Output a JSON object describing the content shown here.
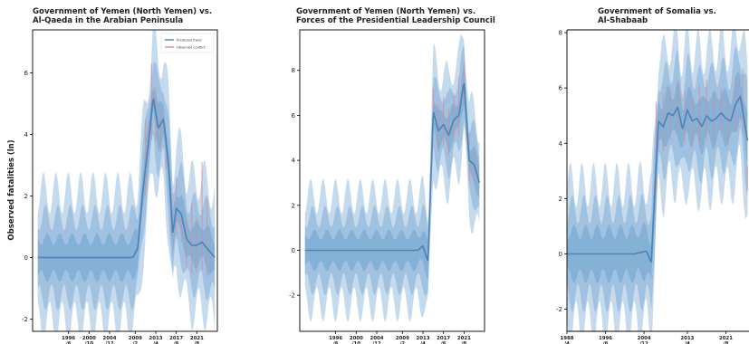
{
  "ylabel": "Observed fatalities (ln)",
  "colors": {
    "band": "#1f6fb4",
    "trend": "#4a83b8",
    "observed": "#d98a9c",
    "axis": "#000000"
  },
  "chart_data": [
    {
      "type": "area",
      "title": [
        "Government of Yemen (North Yemen) vs.",
        "Al-Qaeda in the Arabian Peninsula"
      ],
      "xlim": [
        1989,
        2025
      ],
      "ylim": [
        -2.4,
        7.4
      ],
      "yticks": [
        -2,
        0,
        2,
        4,
        6
      ],
      "xticks": [
        {
          "x": 1996,
          "l1": "1996",
          "l2": "/6"
        },
        {
          "x": 2000,
          "l1": "2000",
          "l2": "/10"
        },
        {
          "x": 2004,
          "l1": "2004",
          "l2": "/12"
        },
        {
          "x": 2009,
          "l1": "2009",
          "l2": "/2"
        },
        {
          "x": 2013,
          "l1": "2013",
          "l2": "/4"
        },
        {
          "x": 2017,
          "l1": "2017",
          "l2": "/6"
        },
        {
          "x": 2021,
          "l1": "2021",
          "l2": "/8"
        }
      ],
      "legend": {
        "position": "top-right",
        "entries": [
          "Predicted trend",
          "Observed conflict"
        ]
      },
      "trend": [
        [
          1990,
          0
        ],
        [
          2008.5,
          0
        ],
        [
          2009.5,
          0.3
        ],
        [
          2010.5,
          2.2
        ],
        [
          2011.5,
          3.6
        ],
        [
          2012.5,
          5.2
        ],
        [
          2013.5,
          4.2
        ],
        [
          2014.5,
          4.5
        ],
        [
          2015.5,
          3
        ],
        [
          2016.3,
          0.8
        ],
        [
          2017,
          1.6
        ],
        [
          2018,
          1.4
        ],
        [
          2019,
          0.6
        ],
        [
          2020,
          0.4
        ],
        [
          2021,
          0.4
        ],
        [
          2022,
          0.5
        ],
        [
          2023.5,
          0.2
        ],
        [
          2024.5,
          0
        ]
      ],
      "band_width": [
        0.6,
        1.3,
        2.1
      ],
      "observed": [
        [
          2011.0,
          4.5
        ],
        [
          2012.2,
          6.3
        ],
        [
          2013.0,
          5.5
        ],
        [
          2014.0,
          4.8
        ],
        [
          2015.0,
          3.3
        ],
        [
          2016.0,
          2.1
        ],
        [
          2017.0,
          2.6
        ],
        [
          2018.0,
          1.5
        ],
        [
          2019.0,
          1.3
        ],
        [
          2020.0,
          1.8
        ],
        [
          2021.0,
          1.3
        ],
        [
          2022.0,
          3.1
        ],
        [
          2023.0,
          1.9
        ]
      ]
    },
    {
      "type": "area",
      "title": [
        "Government of Yemen (North Yemen) vs.",
        "Forces of the Presidential Leadership Council"
      ],
      "xlim": [
        1989,
        2025
      ],
      "ylim": [
        -3.6,
        9.8
      ],
      "yticks": [
        -2,
        0,
        2,
        4,
        6,
        8
      ],
      "xticks": [
        {
          "x": 1996,
          "l1": "1996",
          "l2": "/6"
        },
        {
          "x": 2000,
          "l1": "2000",
          "l2": "/10"
        },
        {
          "x": 2004,
          "l1": "2004",
          "l2": "/12"
        },
        {
          "x": 2009,
          "l1": "2009",
          "l2": "/2"
        },
        {
          "x": 2013,
          "l1": "2013",
          "l2": "/4"
        },
        {
          "x": 2017,
          "l1": "2017",
          "l2": "/6"
        },
        {
          "x": 2021,
          "l1": "2021",
          "l2": "/8"
        }
      ],
      "trend": [
        [
          1990,
          0
        ],
        [
          2012,
          0
        ],
        [
          2013,
          0.2
        ],
        [
          2014,
          -0.5
        ],
        [
          2015,
          6.2
        ],
        [
          2016,
          5.3
        ],
        [
          2017,
          5.6
        ],
        [
          2018,
          5.1
        ],
        [
          2019,
          5.8
        ],
        [
          2020,
          6
        ],
        [
          2021,
          7.5
        ],
        [
          2022,
          4
        ],
        [
          2023,
          3.8
        ],
        [
          2024,
          3
        ]
      ],
      "band_width": [
        0.7,
        1.5,
        2.4
      ],
      "observed": [
        [
          2015.0,
          7.2
        ],
        [
          2016.0,
          6.5
        ],
        [
          2017.0,
          6.8
        ],
        [
          2018.0,
          6.3
        ],
        [
          2019.0,
          6.9
        ],
        [
          2020.0,
          7.7
        ],
        [
          2021.0,
          8.4
        ],
        [
          2022.0,
          5.2
        ],
        [
          2023.0,
          4.4
        ]
      ]
    },
    {
      "type": "area",
      "title": [
        "Government of Somalia vs.",
        "Al-Shabaab"
      ],
      "xlim": [
        1988,
        2025.8
      ],
      "ylim": [
        -2.8,
        8.1
      ],
      "yticks": [
        -2,
        0,
        2,
        4,
        6,
        8
      ],
      "xticks": [
        {
          "x": 1988,
          "l1": "1988",
          "l2": "/4"
        },
        {
          "x": 1996,
          "l1": "1996",
          "l2": "/6"
        },
        {
          "x": 2004,
          "l1": "2004",
          "l2": "/12"
        },
        {
          "x": 2013,
          "l1": "2013",
          "l2": "/4"
        },
        {
          "x": 2021,
          "l1": "2021",
          "l2": "/8"
        }
      ],
      "trend": [
        [
          1988,
          0
        ],
        [
          2002,
          0
        ],
        [
          2004.5,
          0.1
        ],
        [
          2005.5,
          -0.3
        ],
        [
          2007,
          4.8
        ],
        [
          2008,
          4.6
        ],
        [
          2009,
          5.1
        ],
        [
          2010,
          5
        ],
        [
          2011,
          5.3
        ],
        [
          2012,
          4.5
        ],
        [
          2013,
          5.2
        ],
        [
          2014,
          4.8
        ],
        [
          2015,
          4.9
        ],
        [
          2016,
          4.6
        ],
        [
          2017,
          5
        ],
        [
          2018,
          4.8
        ],
        [
          2019,
          4.9
        ],
        [
          2020,
          5.1
        ],
        [
          2021,
          4.9
        ],
        [
          2022,
          4.8
        ],
        [
          2023,
          5.4
        ],
        [
          2024,
          5.7
        ],
        [
          2025.5,
          4.1
        ]
      ],
      "band_width": [
        0.8,
        1.6,
        2.5
      ],
      "observed": [
        [
          2006.5,
          5.5
        ],
        [
          2008.0,
          5.8
        ],
        [
          2009.5,
          6.0
        ],
        [
          2011.0,
          6.2
        ],
        [
          2012.5,
          5.9
        ],
        [
          2014.0,
          5.7
        ],
        [
          2015.5,
          6.1
        ],
        [
          2017.0,
          6.3
        ],
        [
          2018.5,
          5.8
        ],
        [
          2020.0,
          6.0
        ],
        [
          2021.5,
          5.6
        ],
        [
          2023.0,
          6.4
        ],
        [
          2024.5,
          6.7
        ],
        [
          2025.5,
          2.3
        ]
      ]
    }
  ]
}
